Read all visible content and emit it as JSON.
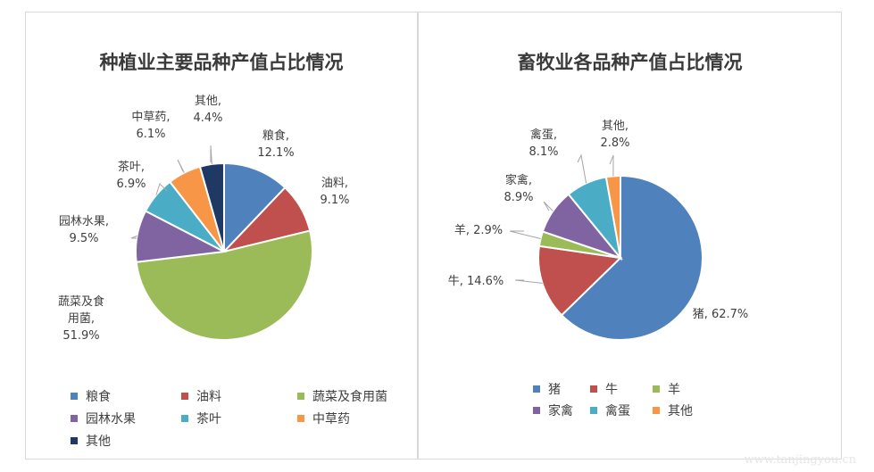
{
  "colors": {
    "blue": "#4f81bd",
    "red": "#c0504d",
    "green": "#9bbb59",
    "purple": "#8064a2",
    "teal": "#4bacc6",
    "orange": "#f79646",
    "navy": "#1f3864"
  },
  "chart_data": [
    {
      "type": "pie",
      "title": "种植业主要品种产值占比情况",
      "legend": "bottom",
      "slices": [
        {
          "name": "粮食",
          "value": 12.1,
          "label": "粮食,",
          "value_label": "12.1%",
          "color": "#4f81bd"
        },
        {
          "name": "油料",
          "value": 9.1,
          "label": "油料,",
          "value_label": "9.1%",
          "color": "#c0504d"
        },
        {
          "name": "蔬菜及食用菌",
          "value": 51.9,
          "label": "蔬菜及食",
          "label2": "用菌,",
          "value_label": "51.9%",
          "color": "#9bbb59"
        },
        {
          "name": "园林水果",
          "value": 9.5,
          "label": "园林水果,",
          "value_label": "9.5%",
          "color": "#8064a2"
        },
        {
          "name": "茶叶",
          "value": 6.9,
          "label": "茶叶,",
          "value_label": "6.9%",
          "color": "#4bacc6"
        },
        {
          "name": "中草药",
          "value": 6.1,
          "label": "中草药,",
          "value_label": "6.1%",
          "color": "#f79646"
        },
        {
          "name": "其他",
          "value": 4.4,
          "label": "其他,",
          "value_label": "4.4%",
          "color": "#1f3864"
        }
      ]
    },
    {
      "type": "pie",
      "title": "畜牧业各品种产值占比情况",
      "legend": "bottom",
      "slices": [
        {
          "name": "猪",
          "value": 62.7,
          "label": "猪, 62.7%",
          "color": "#4f81bd"
        },
        {
          "name": "牛",
          "value": 14.6,
          "label": "牛, 14.6%",
          "color": "#c0504d"
        },
        {
          "name": "羊",
          "value": 2.9,
          "label": "羊, 2.9%",
          "color": "#9bbb59"
        },
        {
          "name": "家禽",
          "value": 8.9,
          "label": "家禽,",
          "value_label": "8.9%",
          "color": "#8064a2"
        },
        {
          "name": "禽蛋",
          "value": 8.1,
          "label": "禽蛋,",
          "value_label": "8.1%",
          "color": "#4bacc6"
        },
        {
          "name": "其他",
          "value": 2.8,
          "label": "其他,",
          "value_label": "2.8%",
          "color": "#f79646"
        }
      ]
    }
  ],
  "watermark": "www.tanjingyou.cn"
}
